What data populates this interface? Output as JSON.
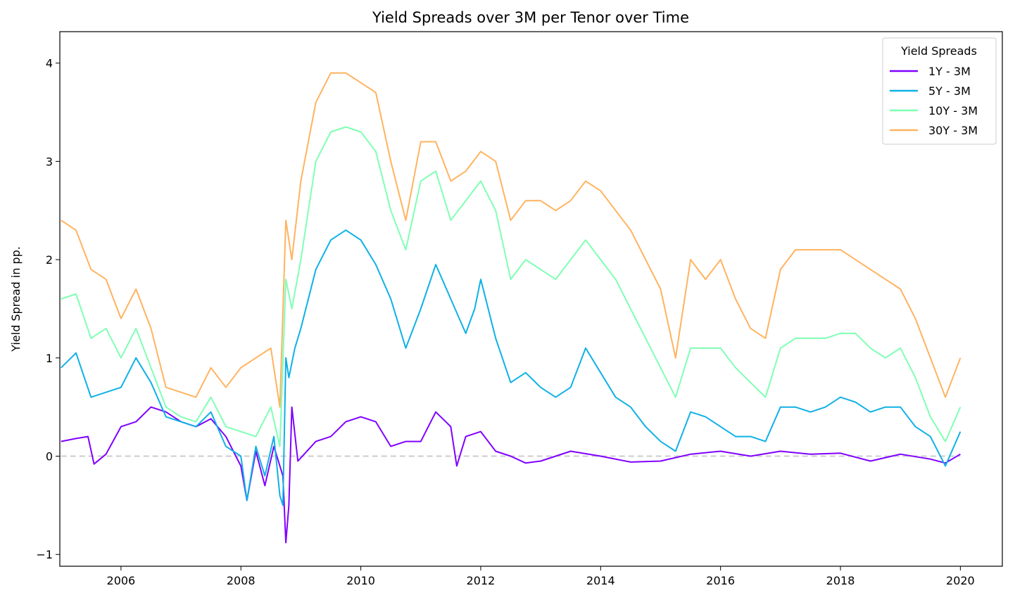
{
  "chart_data": {
    "type": "line",
    "title": "Yield Spreads over 3M per Tenor over Time",
    "xlabel": "",
    "ylabel": "Yield Spread in pp.",
    "xlim": [
      2004.98,
      2020.7
    ],
    "ylim": [
      -1.12,
      4.32
    ],
    "x_ticks": [
      2006,
      2008,
      2010,
      2012,
      2014,
      2016,
      2018,
      2020
    ],
    "x_tick_labels": [
      "2006",
      "2008",
      "2010",
      "2012",
      "2014",
      "2016",
      "2018",
      "2020"
    ],
    "y_ticks": [
      -1,
      0,
      1,
      2,
      3,
      4
    ],
    "y_tick_labels": [
      "−1",
      "0",
      "1",
      "2",
      "3",
      "4"
    ],
    "grid": false,
    "reference_line": {
      "y": 0,
      "style": "dashed",
      "color": "#cccccc"
    },
    "legend": {
      "title": "Yield Spreads",
      "position": "top-right"
    },
    "series": [
      {
        "name": "1Y - 3M",
        "color": "#8000ff",
        "x": [
          2005.0,
          2005.25,
          2005.45,
          2005.55,
          2005.75,
          2006.0,
          2006.25,
          2006.5,
          2006.75,
          2007.0,
          2007.25,
          2007.5,
          2007.75,
          2008.0,
          2008.1,
          2008.25,
          2008.4,
          2008.55,
          2008.7,
          2008.75,
          2008.8,
          2008.85,
          2008.95,
          2009.25,
          2009.5,
          2009.75,
          2010.0,
          2010.25,
          2010.5,
          2010.75,
          2011.0,
          2011.25,
          2011.5,
          2011.6,
          2011.75,
          2012.0,
          2012.25,
          2012.5,
          2012.75,
          2013.0,
          2013.5,
          2014.0,
          2014.5,
          2015.0,
          2015.5,
          2016.0,
          2016.5,
          2017.0,
          2017.5,
          2018.0,
          2018.5,
          2019.0,
          2019.5,
          2019.75,
          2020.0
        ],
        "y": [
          0.15,
          0.18,
          0.2,
          -0.08,
          0.02,
          0.3,
          0.35,
          0.5,
          0.45,
          0.35,
          0.3,
          0.38,
          0.2,
          -0.1,
          -0.45,
          0.05,
          -0.3,
          0.1,
          -0.2,
          -0.88,
          -0.5,
          0.5,
          -0.05,
          0.15,
          0.2,
          0.35,
          0.4,
          0.35,
          0.1,
          0.15,
          0.15,
          0.45,
          0.3,
          -0.1,
          0.2,
          0.25,
          0.05,
          0.0,
          -0.07,
          -0.05,
          0.05,
          0.0,
          -0.06,
          -0.05,
          0.02,
          0.05,
          0.0,
          0.05,
          0.02,
          0.03,
          -0.05,
          0.02,
          -0.03,
          -0.07,
          0.02
        ]
      },
      {
        "name": "5Y - 3M",
        "color": "#0fb1e6",
        "x": [
          2005.0,
          2005.25,
          2005.5,
          2005.75,
          2006.0,
          2006.25,
          2006.5,
          2006.75,
          2007.0,
          2007.25,
          2007.5,
          2007.75,
          2008.0,
          2008.1,
          2008.25,
          2008.4,
          2008.55,
          2008.65,
          2008.7,
          2008.75,
          2008.8,
          2008.9,
          2009.0,
          2009.25,
          2009.5,
          2009.75,
          2010.0,
          2010.25,
          2010.5,
          2010.75,
          2011.0,
          2011.25,
          2011.5,
          2011.75,
          2011.9,
          2012.0,
          2012.25,
          2012.5,
          2012.75,
          2013.0,
          2013.25,
          2013.5,
          2013.75,
          2014.0,
          2014.25,
          2014.5,
          2014.75,
          2015.0,
          2015.25,
          2015.5,
          2015.75,
          2016.0,
          2016.25,
          2016.5,
          2016.75,
          2017.0,
          2017.25,
          2017.5,
          2017.75,
          2018.0,
          2018.25,
          2018.5,
          2018.75,
          2019.0,
          2019.25,
          2019.5,
          2019.75,
          2020.0
        ],
        "y": [
          0.9,
          1.05,
          0.6,
          0.65,
          0.7,
          1.0,
          0.75,
          0.4,
          0.35,
          0.3,
          0.45,
          0.1,
          0.0,
          -0.45,
          0.1,
          -0.2,
          0.2,
          -0.4,
          -0.5,
          1.0,
          0.8,
          1.1,
          1.3,
          1.9,
          2.2,
          2.3,
          2.2,
          1.95,
          1.6,
          1.1,
          1.5,
          1.95,
          1.6,
          1.25,
          1.5,
          1.8,
          1.2,
          0.75,
          0.85,
          0.7,
          0.6,
          0.7,
          1.1,
          0.85,
          0.6,
          0.5,
          0.3,
          0.15,
          0.05,
          0.45,
          0.4,
          0.3,
          0.2,
          0.2,
          0.15,
          0.5,
          0.5,
          0.45,
          0.5,
          0.6,
          0.55,
          0.45,
          0.5,
          0.5,
          0.3,
          0.2,
          -0.1,
          0.25
        ]
      },
      {
        "name": "10Y - 3M",
        "color": "#80ffb4",
        "x": [
          2005.0,
          2005.25,
          2005.5,
          2005.75,
          2006.0,
          2006.25,
          2006.5,
          2006.75,
          2007.0,
          2007.25,
          2007.5,
          2007.75,
          2008.0,
          2008.25,
          2008.5,
          2008.65,
          2008.75,
          2008.85,
          2009.0,
          2009.25,
          2009.5,
          2009.75,
          2010.0,
          2010.25,
          2010.5,
          2010.75,
          2011.0,
          2011.25,
          2011.5,
          2011.75,
          2012.0,
          2012.25,
          2012.5,
          2012.75,
          2013.0,
          2013.25,
          2013.5,
          2013.75,
          2014.0,
          2014.25,
          2014.5,
          2014.75,
          2015.0,
          2015.25,
          2015.5,
          2015.75,
          2016.0,
          2016.25,
          2016.5,
          2016.75,
          2017.0,
          2017.25,
          2017.5,
          2017.75,
          2018.0,
          2018.25,
          2018.5,
          2018.75,
          2019.0,
          2019.25,
          2019.5,
          2019.75,
          2020.0
        ],
        "y": [
          1.6,
          1.65,
          1.2,
          1.3,
          1.0,
          1.3,
          0.9,
          0.5,
          0.4,
          0.35,
          0.6,
          0.3,
          0.25,
          0.2,
          0.5,
          0.1,
          1.8,
          1.5,
          2.0,
          3.0,
          3.3,
          3.35,
          3.3,
          3.1,
          2.5,
          2.1,
          2.8,
          2.9,
          2.4,
          2.6,
          2.8,
          2.5,
          1.8,
          2.0,
          1.9,
          1.8,
          2.0,
          2.2,
          2.0,
          1.8,
          1.5,
          1.2,
          0.9,
          0.6,
          1.1,
          1.1,
          1.1,
          0.9,
          0.75,
          0.6,
          1.1,
          1.2,
          1.2,
          1.2,
          1.25,
          1.25,
          1.1,
          1.0,
          1.1,
          0.8,
          0.4,
          0.15,
          0.5
        ]
      },
      {
        "name": "30Y - 3M",
        "color": "#ffb360",
        "x": [
          2005.0,
          2005.25,
          2005.5,
          2005.75,
          2006.0,
          2006.25,
          2006.5,
          2006.75,
          2007.0,
          2007.25,
          2007.5,
          2007.75,
          2008.0,
          2008.25,
          2008.5,
          2008.65,
          2008.75,
          2008.85,
          2009.0,
          2009.25,
          2009.5,
          2009.75,
          2010.0,
          2010.25,
          2010.5,
          2010.75,
          2011.0,
          2011.25,
          2011.5,
          2011.75,
          2012.0,
          2012.25,
          2012.5,
          2012.75,
          2013.0,
          2013.25,
          2013.5,
          2013.75,
          2014.0,
          2014.25,
          2014.5,
          2014.75,
          2015.0,
          2015.25,
          2015.5,
          2015.75,
          2016.0,
          2016.25,
          2016.5,
          2016.75,
          2017.0,
          2017.25,
          2017.5,
          2017.75,
          2018.0,
          2018.25,
          2018.5,
          2018.75,
          2019.0,
          2019.25,
          2019.5,
          2019.75,
          2020.0
        ],
        "y": [
          2.4,
          2.3,
          1.9,
          1.8,
          1.4,
          1.7,
          1.3,
          0.7,
          0.65,
          0.6,
          0.9,
          0.7,
          0.9,
          1.0,
          1.1,
          0.5,
          2.4,
          2.0,
          2.8,
          3.6,
          3.9,
          3.9,
          3.8,
          3.7,
          3.0,
          2.4,
          3.2,
          3.2,
          2.8,
          2.9,
          3.1,
          3.0,
          2.4,
          2.6,
          2.6,
          2.5,
          2.6,
          2.8,
          2.7,
          2.5,
          2.3,
          2.0,
          1.7,
          1.0,
          2.0,
          1.8,
          2.0,
          1.6,
          1.3,
          1.2,
          1.9,
          2.1,
          2.1,
          2.1,
          2.1,
          2.0,
          1.9,
          1.8,
          1.7,
          1.4,
          1.0,
          0.6,
          1.0
        ]
      }
    ]
  }
}
